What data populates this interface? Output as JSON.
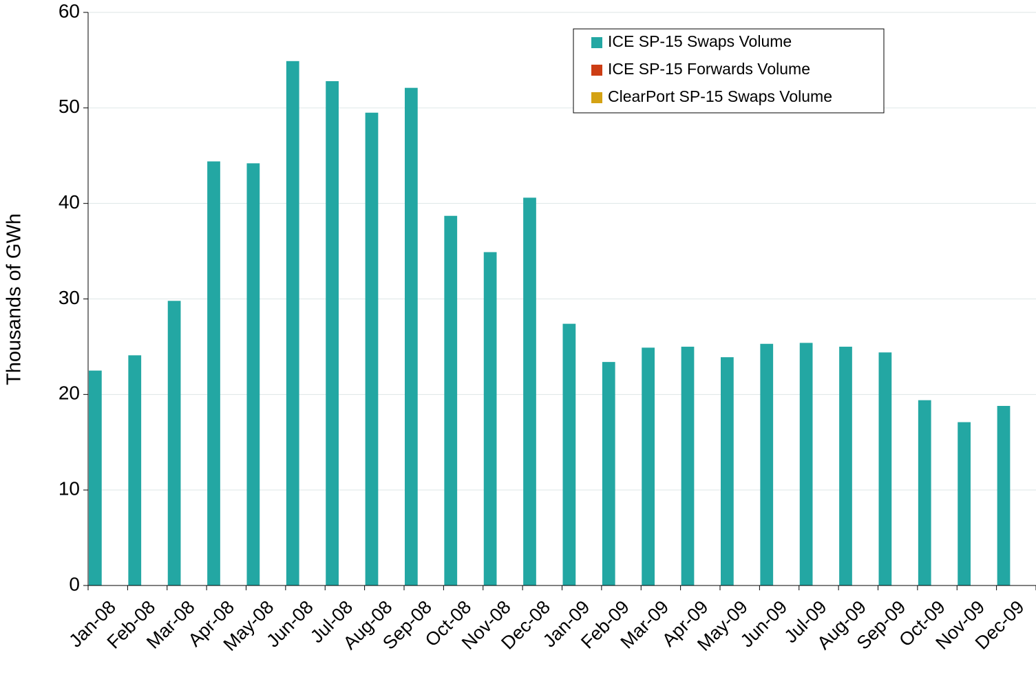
{
  "chart_data": {
    "type": "bar",
    "y_label": "Thousands of GWh",
    "categories": [
      "Jan-08",
      "Feb-08",
      "Mar-08",
      "Apr-08",
      "May-08",
      "Jun-08",
      "Jul-08",
      "Aug-08",
      "Sep-08",
      "Oct-08",
      "Nov-08",
      "Dec-08",
      "Jan-09",
      "Feb-09",
      "Mar-09",
      "Apr-09",
      "May-09",
      "Jun-09",
      "Jul-09",
      "Aug-09",
      "Sep-09",
      "Oct-09",
      "Nov-09",
      "Dec-09"
    ],
    "series": [
      {
        "name": "ICE SP-15 Swaps Volume",
        "color": "#23a7a3",
        "values": [
          22.5,
          24.1,
          29.8,
          44.4,
          44.2,
          54.9,
          52.8,
          49.5,
          52.1,
          38.7,
          34.9,
          40.6,
          27.4,
          23.4,
          24.9,
          25.0,
          23.9,
          25.3,
          25.4,
          25.0,
          24.4,
          19.4,
          17.1,
          18.8
        ]
      },
      {
        "name": "ICE SP-15 Forwards Volume",
        "color": "#cc3d14",
        "values": [
          0,
          0,
          0,
          0,
          0,
          0,
          0,
          0,
          0,
          0,
          0,
          0,
          0,
          0,
          0,
          0,
          0,
          0,
          0,
          0,
          0,
          0,
          0,
          0
        ]
      },
      {
        "name": "ClearPort SP-15 Swaps Volume",
        "color": "#d4a214",
        "values": [
          0,
          0,
          0,
          0,
          0,
          0,
          0,
          0,
          0,
          0,
          0,
          0,
          0,
          0,
          0,
          0,
          0,
          0,
          0,
          0,
          0,
          0,
          0,
          0
        ]
      }
    ],
    "ylim": [
      0,
      60
    ],
    "yticks": [
      0,
      10,
      20,
      30,
      40,
      50,
      60
    ],
    "grid": true,
    "legend": "top-right"
  }
}
